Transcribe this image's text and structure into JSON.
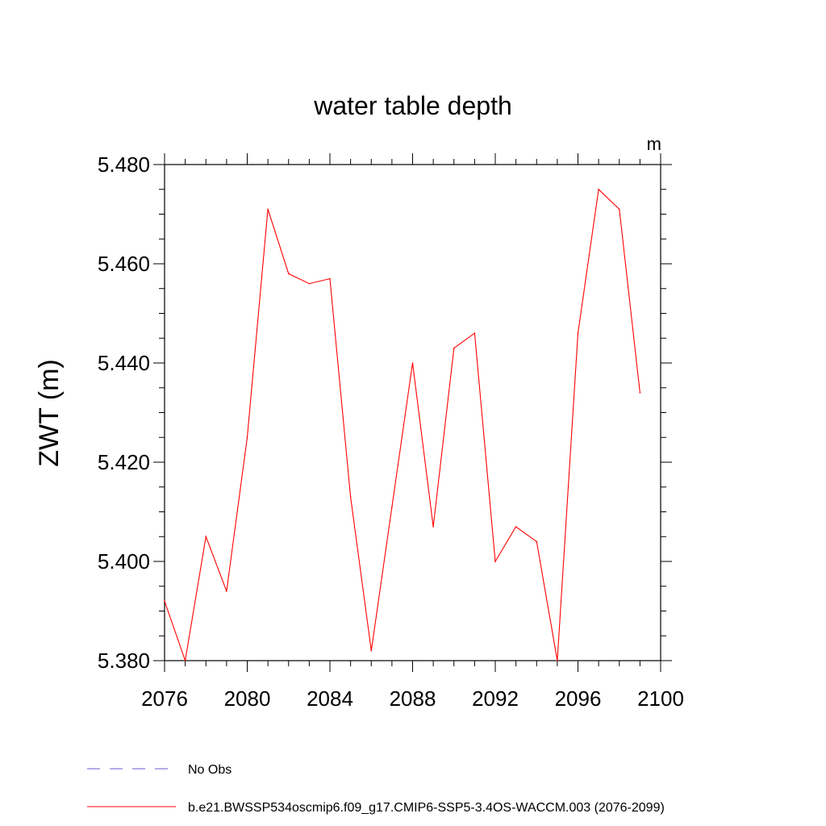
{
  "chart_data": {
    "type": "line",
    "title": "water table depth",
    "units": "m",
    "xlabel": "",
    "ylabel": "ZWT  (m)",
    "xlim": [
      2076,
      2100
    ],
    "ylim": [
      5.38,
      5.48
    ],
    "xticks": [
      "2076",
      "2080",
      "2084",
      "2088",
      "2092",
      "2096",
      "2100"
    ],
    "yticks": [
      "5.380",
      "5.400",
      "5.420",
      "5.440",
      "5.460",
      "5.480"
    ],
    "series": [
      {
        "name": "b.e21.BWSSP534oscmip6.f09_g17.CMIP6-SSP5-3.4OS-WACCM.003 (2076-2099)",
        "color": "#ff0000",
        "style": "solid",
        "x": [
          2076,
          2077,
          2078,
          2079,
          2080,
          2081,
          2082,
          2083,
          2084,
          2085,
          2086,
          2087,
          2088,
          2089,
          2090,
          2091,
          2092,
          2093,
          2094,
          2095,
          2096,
          2097,
          2098,
          2099
        ],
        "values": [
          5.392,
          5.38,
          5.405,
          5.394,
          5.425,
          5.471,
          5.458,
          5.456,
          5.457,
          5.413,
          5.382,
          5.411,
          5.44,
          5.407,
          5.443,
          5.446,
          5.4,
          5.407,
          5.404,
          5.38,
          5.446,
          5.475,
          5.471,
          5.434
        ]
      }
    ],
    "legend": [
      {
        "label": "No Obs",
        "color": "#6a5acd",
        "style": "dashed"
      },
      {
        "label": "b.e21.BWSSP534oscmip6.f09_g17.CMIP6-SSP5-3.4OS-WACCM.003 (2076-2099)",
        "color": "#ff0000",
        "style": "solid"
      }
    ],
    "legend_position": "bottom-left"
  }
}
